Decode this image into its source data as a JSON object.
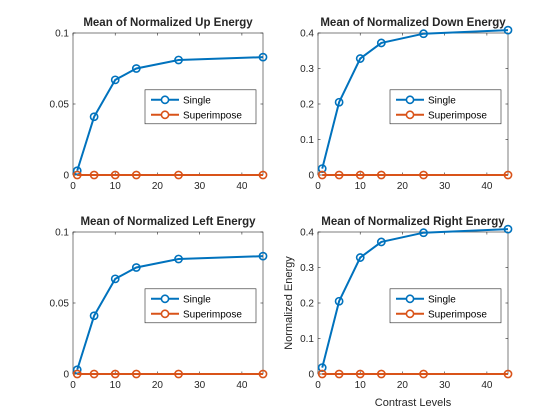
{
  "chart_data": [
    {
      "type": "line",
      "title": "Mean of Normalized Up Energy",
      "xlabel": "",
      "ylabel": "",
      "xlim": [
        0,
        45
      ],
      "ylim": [
        0,
        0.1
      ],
      "xticks": [
        0,
        10,
        20,
        30,
        40
      ],
      "yticks": [
        0,
        0.05,
        0.1
      ],
      "ytick_labels": [
        "0",
        "0.05",
        "0.1"
      ],
      "x": [
        1,
        5,
        10,
        15,
        25,
        45
      ],
      "series": [
        {
          "name": "Single",
          "color": "#0072BD",
          "values": [
            0.003,
            0.041,
            0.067,
            0.075,
            0.081,
            0.083
          ]
        },
        {
          "name": "Superimpose",
          "color": "#D95319",
          "values": [
            0,
            0,
            0,
            0,
            0,
            0
          ]
        }
      ],
      "legend": "center-right",
      "grid": false
    },
    {
      "type": "line",
      "title": "Mean of Normalized Down Energy",
      "xlabel": "",
      "ylabel": "",
      "xlim": [
        0,
        45
      ],
      "ylim": [
        0,
        0.4
      ],
      "xticks": [
        0,
        10,
        20,
        30,
        40
      ],
      "yticks": [
        0,
        0.1,
        0.2,
        0.3,
        0.4
      ],
      "ytick_labels": [
        "0",
        "0.1",
        "0.2",
        "0.3",
        "0.4"
      ],
      "x": [
        1,
        5,
        10,
        15,
        25,
        45
      ],
      "series": [
        {
          "name": "Single",
          "color": "#0072BD",
          "values": [
            0.018,
            0.205,
            0.328,
            0.372,
            0.398,
            0.408
          ]
        },
        {
          "name": "Superimpose",
          "color": "#D95319",
          "values": [
            0,
            0,
            0,
            0,
            0,
            0
          ]
        }
      ],
      "legend": "center-right",
      "grid": false
    },
    {
      "type": "line",
      "title": "Mean of Normalized Left Energy",
      "xlabel": "",
      "ylabel": "",
      "xlim": [
        0,
        45
      ],
      "ylim": [
        0,
        0.1
      ],
      "xticks": [
        0,
        10,
        20,
        30,
        40
      ],
      "yticks": [
        0,
        0.05,
        0.1
      ],
      "ytick_labels": [
        "0",
        "0.05",
        "0.1"
      ],
      "x": [
        1,
        5,
        10,
        15,
        25,
        45
      ],
      "series": [
        {
          "name": "Single",
          "color": "#0072BD",
          "values": [
            0.003,
            0.041,
            0.067,
            0.075,
            0.081,
            0.083
          ]
        },
        {
          "name": "Superimpose",
          "color": "#D95319",
          "values": [
            0,
            0,
            0,
            0,
            0,
            0
          ]
        }
      ],
      "legend": "center-right",
      "grid": false
    },
    {
      "type": "line",
      "title": "Mean of Normalized Right Energy",
      "xlabel": "Contrast Levels",
      "ylabel": "Normalized Energy",
      "xlim": [
        0,
        45
      ],
      "ylim": [
        0,
        0.4
      ],
      "xticks": [
        0,
        10,
        20,
        30,
        40
      ],
      "yticks": [
        0,
        0.1,
        0.2,
        0.3,
        0.4
      ],
      "ytick_labels": [
        "0",
        "0.1",
        "0.2",
        "0.3",
        "0.4"
      ],
      "x": [
        1,
        5,
        10,
        15,
        25,
        45
      ],
      "series": [
        {
          "name": "Single",
          "color": "#0072BD",
          "values": [
            0.018,
            0.205,
            0.328,
            0.372,
            0.398,
            0.408
          ]
        },
        {
          "name": "Superimpose",
          "color": "#D95319",
          "values": [
            0,
            0,
            0,
            0,
            0,
            0
          ]
        }
      ],
      "legend": "center-right",
      "grid": false
    }
  ]
}
